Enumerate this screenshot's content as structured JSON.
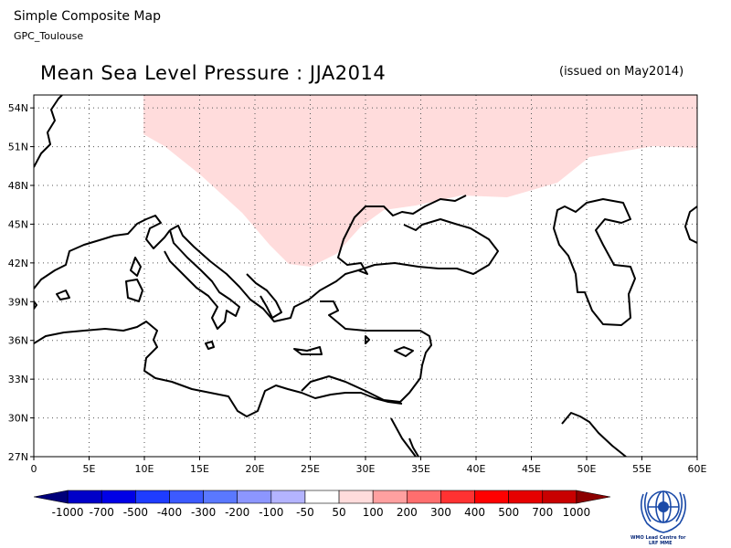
{
  "header": {
    "title": "Simple Composite Map",
    "subtitle": "GPC_Toulouse"
  },
  "map": {
    "title": "Mean Sea Level Pressure : JJA2014",
    "issued": "(issued on May2014)",
    "lon_range": [
      0,
      60
    ],
    "lat_range": [
      27,
      55
    ],
    "lat_ticks": [
      "27N",
      "30N",
      "33N",
      "36N",
      "39N",
      "42N",
      "45N",
      "48N",
      "51N",
      "54N"
    ],
    "lon_ticks": [
      "0",
      "5E",
      "10E",
      "15E",
      "20E",
      "25E",
      "30E",
      "35E",
      "40E",
      "45E",
      "50E",
      "55E",
      "60E"
    ],
    "grid": "dotted",
    "anomaly_fill_color": "#ffdcdc",
    "anomaly_range": "50 to 100"
  },
  "colorbar": {
    "labels": [
      "-1000",
      "-700",
      "-500",
      "-400",
      "-300",
      "-200",
      "-100",
      "-50",
      "50",
      "100",
      "200",
      "300",
      "400",
      "500",
      "700",
      "1000"
    ],
    "colors": [
      "#00007a",
      "#0000c8",
      "#0000e6",
      "#1e3cff",
      "#3c5aff",
      "#5a78ff",
      "#8c96ff",
      "#b4b4ff",
      "#ffffff",
      "#ffdcdc",
      "#ffa0a0",
      "#ff6e6e",
      "#ff3232",
      "#ff0000",
      "#e60000",
      "#c80000",
      "#8c0000"
    ]
  },
  "logo": {
    "caption_line1": "WMO Lead Centre for",
    "caption_line2": "LRF MME"
  }
}
